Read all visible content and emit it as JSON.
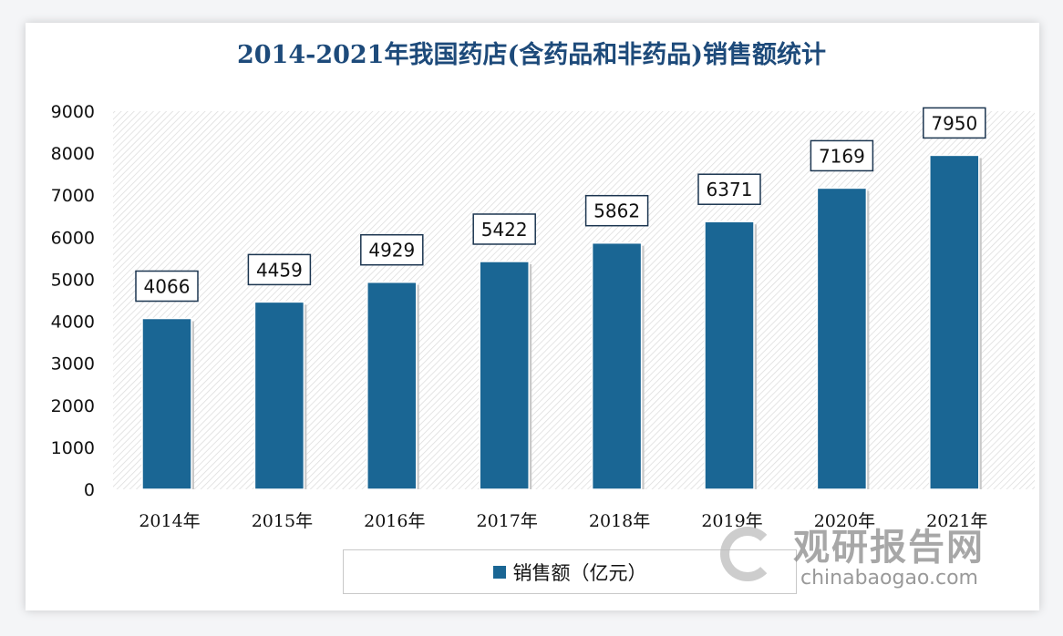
{
  "chart_data": {
    "type": "bar",
    "title": "2014-2021年我国药店(含药品和非药品)销售额统计",
    "categories": [
      "2014年",
      "2015年",
      "2016年",
      "2017年",
      "2018年",
      "2019年",
      "2020年",
      "2021年"
    ],
    "series": [
      {
        "name": "销售额（亿元）",
        "values": [
          4066,
          4459,
          4929,
          5422,
          5862,
          6371,
          7169,
          7950
        ],
        "color": "#1a6694"
      }
    ],
    "ylim": [
      0,
      9000
    ],
    "yticks": [
      0,
      1000,
      2000,
      3000,
      4000,
      5000,
      6000,
      7000,
      8000,
      9000
    ],
    "xlabel": "",
    "ylabel": "",
    "grid": false,
    "legend_position": "bottom",
    "plot_background": "diagonal hatch"
  },
  "watermark": {
    "cn": "观研报告网",
    "en": "chinabaogao.com"
  }
}
